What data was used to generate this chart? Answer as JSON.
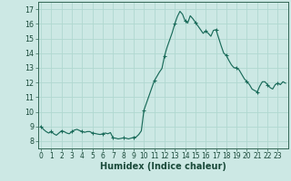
{
  "title": "",
  "xlabel": "Humidex (Indice chaleur)",
  "ylabel": "",
  "bg_color": "#cce8e4",
  "grid_color": "#b0d8d0",
  "line_color": "#1a6b5a",
  "ylim": [
    7.5,
    17.5
  ],
  "xlim": [
    -0.3,
    24.0
  ],
  "yticks": [
    8,
    9,
    10,
    11,
    12,
    13,
    14,
    15,
    16,
    17
  ],
  "xticks": [
    0,
    1,
    2,
    3,
    4,
    5,
    6,
    7,
    8,
    9,
    10,
    11,
    12,
    13,
    14,
    15,
    16,
    17,
    18,
    19,
    20,
    21,
    22,
    23
  ],
  "x": [
    0,
    0.25,
    0.5,
    0.75,
    1.0,
    1.25,
    1.5,
    1.75,
    2.0,
    2.25,
    2.5,
    2.75,
    3.0,
    3.25,
    3.5,
    3.75,
    4.0,
    4.25,
    4.5,
    4.75,
    5.0,
    5.25,
    5.5,
    5.75,
    6.0,
    6.25,
    6.5,
    6.75,
    7.0,
    7.25,
    7.5,
    7.75,
    8.0,
    8.25,
    8.5,
    8.75,
    9.0,
    9.25,
    9.5,
    9.75,
    10.0,
    10.25,
    10.5,
    10.75,
    11.0,
    11.25,
    11.5,
    11.75,
    12.0,
    12.25,
    12.5,
    12.75,
    13.0,
    13.25,
    13.5,
    13.75,
    14.0,
    14.25,
    14.5,
    14.75,
    15.0,
    15.25,
    15.5,
    15.75,
    16.0,
    16.25,
    16.5,
    16.75,
    17.0,
    17.25,
    17.5,
    17.75,
    18.0,
    18.25,
    18.5,
    18.75,
    19.0,
    19.25,
    19.5,
    19.75,
    20.0,
    20.25,
    20.5,
    20.75,
    21.0,
    21.25,
    21.5,
    21.75,
    22.0,
    22.25,
    22.5,
    22.75,
    23.0,
    23.25,
    23.5,
    23.75
  ],
  "y": [
    9.0,
    8.8,
    8.65,
    8.55,
    8.65,
    8.5,
    8.4,
    8.55,
    8.7,
    8.65,
    8.55,
    8.5,
    8.65,
    8.75,
    8.8,
    8.72,
    8.65,
    8.6,
    8.65,
    8.65,
    8.55,
    8.52,
    8.48,
    8.45,
    8.5,
    8.55,
    8.5,
    8.58,
    8.22,
    8.2,
    8.15,
    8.18,
    8.22,
    8.2,
    8.15,
    8.2,
    8.25,
    8.28,
    8.45,
    8.7,
    10.1,
    10.6,
    11.1,
    11.6,
    12.1,
    12.4,
    12.7,
    12.95,
    13.8,
    14.4,
    14.9,
    15.4,
    16.0,
    16.5,
    16.85,
    16.65,
    16.2,
    16.05,
    16.55,
    16.35,
    16.1,
    15.85,
    15.6,
    15.35,
    15.5,
    15.35,
    15.15,
    15.55,
    15.6,
    15.05,
    14.5,
    14.0,
    13.85,
    13.5,
    13.2,
    13.0,
    13.0,
    12.85,
    12.55,
    12.25,
    12.05,
    11.85,
    11.55,
    11.45,
    11.35,
    11.75,
    12.05,
    12.05,
    11.85,
    11.65,
    11.55,
    11.85,
    11.95,
    11.85,
    12.05,
    11.95
  ]
}
